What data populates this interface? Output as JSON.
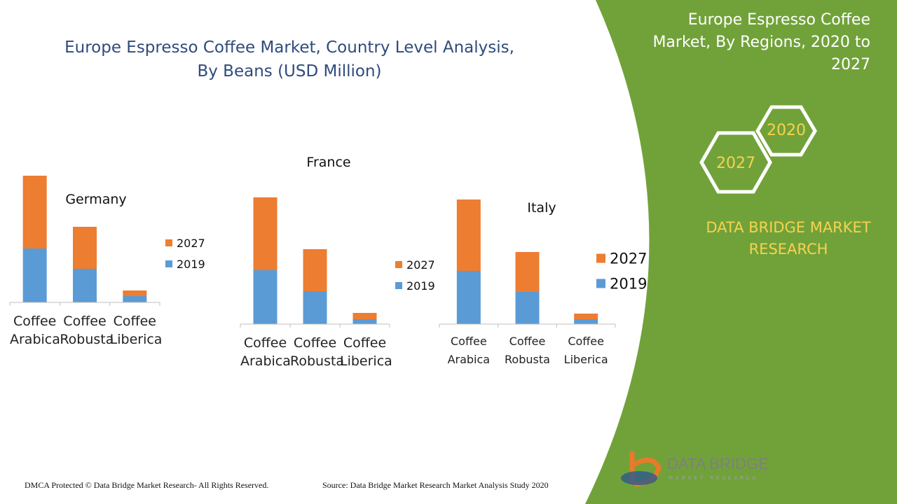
{
  "header": {
    "title": [
      "Europe Espresso Coffee Market, Country Level Analysis,",
      "By Beans (USD Million)"
    ]
  },
  "chart_data": [
    {
      "type": "bar",
      "stacked": true,
      "title": "Germany",
      "categories": [
        "Coffee Arabica",
        "Coffee Robusta",
        "Coffee Liberica"
      ],
      "series": [
        {
          "name": "2019",
          "color": "#5b9bd5",
          "values": [
            77,
            48,
            9
          ]
        },
        {
          "name": "2027",
          "color": "#ed7d31",
          "values": [
            104,
            60,
            8
          ]
        }
      ],
      "ylim": [
        0,
        200
      ]
    },
    {
      "type": "bar",
      "stacked": true,
      "title": "France",
      "categories": [
        "Coffee Arabica",
        "Coffee Robusta",
        "Coffee Liberica"
      ],
      "series": [
        {
          "name": "2019",
          "color": "#5b9bd5",
          "values": [
            77,
            47,
            7
          ]
        },
        {
          "name": "2027",
          "color": "#ed7d31",
          "values": [
            104,
            60,
            9
          ]
        }
      ],
      "ylim": [
        0,
        200
      ]
    },
    {
      "type": "bar",
      "stacked": true,
      "title": "Italy",
      "categories": [
        "Coffee Arabica",
        "Coffee Robusta",
        "Coffee Liberica"
      ],
      "series": [
        {
          "name": "2019",
          "color": "#5b9bd5",
          "values": [
            76,
            46,
            7
          ]
        },
        {
          "name": "2027",
          "color": "#ed7d31",
          "values": [
            102,
            57,
            8
          ]
        }
      ],
      "ylim": [
        0,
        200
      ]
    }
  ],
  "side_panel": {
    "title": [
      "Europe Espresso Coffee",
      "Market, By Regions, 2020 to",
      "2027"
    ],
    "hexagons": [
      "2020",
      "2027"
    ],
    "brand": [
      "DATA BRIDGE MARKET",
      "RESEARCH"
    ]
  },
  "logo": {
    "name": "DATA BRIDGE",
    "subtitle": "MARKET RESEARCH"
  },
  "footer": {
    "copyright": "DMCA Protected © Data Bridge Market Research- All Rights Reserved.",
    "source": "Source: Data Bridge Market Research Market Analysis Study 2020"
  }
}
